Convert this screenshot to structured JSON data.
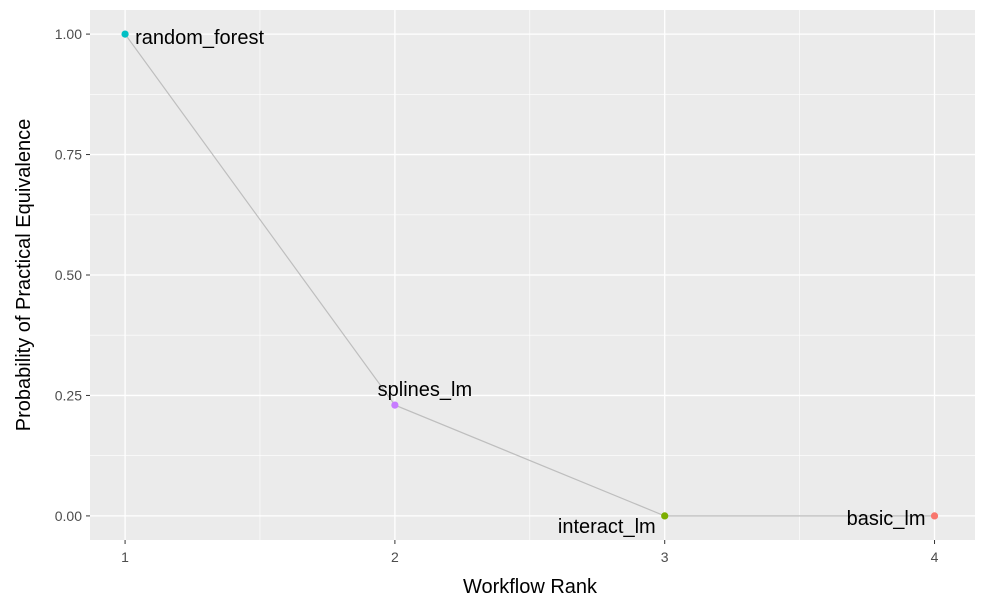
{
  "chart_data": {
    "type": "line",
    "xlabel": "Workflow Rank",
    "ylabel": "Probability of Practical Equivalence",
    "xlim": [
      0.87,
      4.15
    ],
    "ylim": [
      -0.05,
      1.05
    ],
    "x_ticks": [
      1,
      2,
      3,
      4
    ],
    "x_tick_labels": [
      "1",
      "2",
      "3",
      "4"
    ],
    "y_ticks": [
      0,
      0.25,
      0.5,
      0.75,
      1.0
    ],
    "y_tick_labels": [
      "0.00",
      "0.25",
      "0.50",
      "0.75",
      "1.00"
    ],
    "grid": true,
    "line_color": "#bebebe",
    "points": [
      {
        "label": "random_forest",
        "x": 1,
        "y": 1.0,
        "color": "#00bfc4"
      },
      {
        "label": "splines_lm",
        "x": 2,
        "y": 0.23,
        "color": "#c77cff"
      },
      {
        "label": "interact_lm",
        "x": 3,
        "y": 0.0,
        "color": "#7cae00"
      },
      {
        "label": "basic_lm",
        "x": 4,
        "y": 0.0,
        "color": "#f8766d"
      }
    ]
  }
}
